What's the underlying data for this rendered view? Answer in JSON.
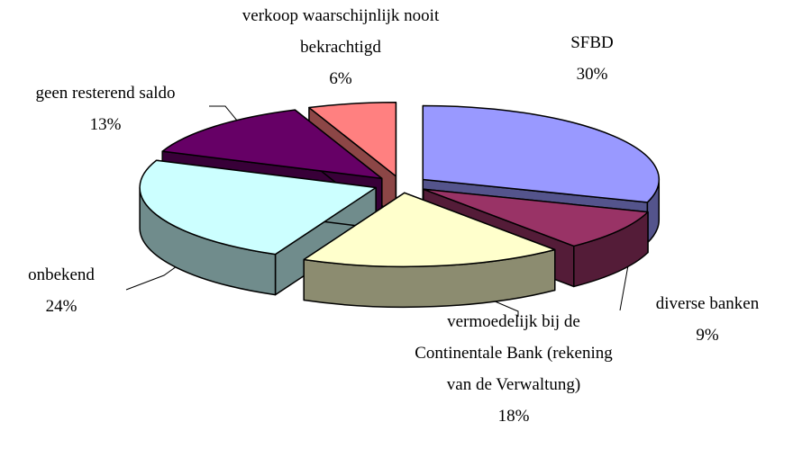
{
  "chart_data": {
    "type": "pie3d",
    "categories": [
      "SFBD",
      "diverse banken",
      "vermoedelijk bij de Continentale Bank (rekening van de Verwaltung)",
      "onbekend",
      "geen resterend saldo",
      "verkoop waarschijnlijk nooit bekrachtigd"
    ],
    "values": [
      30,
      9,
      18,
      24,
      13,
      6
    ],
    "value_labels": [
      "30%",
      "9%",
      "18%",
      "24%",
      "13%",
      "6%"
    ],
    "colors": [
      "#9999ff",
      "#993366",
      "#ffffcc",
      "#ccffff",
      "#660066",
      "#ff8080"
    ]
  }
}
